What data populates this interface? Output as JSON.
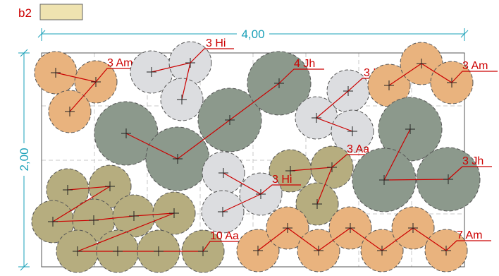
{
  "legend": {
    "label": "b2",
    "swatch_color": "#efe3b0"
  },
  "dimensions": {
    "width_label": "4,00",
    "height_label": "2,00"
  },
  "colors": {
    "Am": "#e9b37e",
    "Hi": "#dcdde0",
    "Jh": "#8c998c",
    "Aa": "#b6ad7f",
    "line": "#cc0000",
    "dim": "#1aa0b8",
    "grid": "#c8c8c8",
    "outline": "#555555"
  },
  "groups": [
    {
      "label": "3 Am",
      "type": "Am"
    },
    {
      "label": "3 Hi",
      "type": "Hi"
    },
    {
      "label": "4 Jh",
      "type": "Jh"
    },
    {
      "label": "3 Hi",
      "type": "Hi"
    },
    {
      "label": "3 Am",
      "type": "Am"
    },
    {
      "label": "3 Aa",
      "type": "Aa"
    },
    {
      "label": "3 Jh",
      "type": "Jh"
    },
    {
      "label": "3 Hi",
      "type": "Hi"
    },
    {
      "label": "10 Aa",
      "type": "Aa"
    },
    {
      "label": "7 Am",
      "type": "Am"
    }
  ]
}
